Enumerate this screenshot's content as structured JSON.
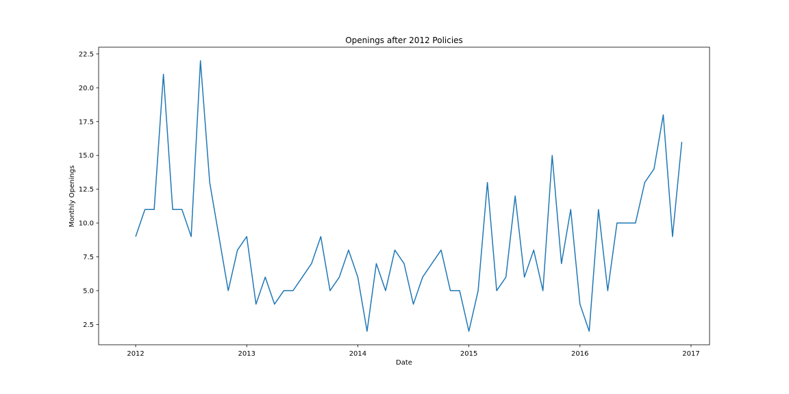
{
  "chart_data": {
    "type": "line",
    "title": "Openings after 2012 Policies",
    "xlabel": "Date",
    "ylabel": "Monthly Openings",
    "x_ticks": [
      "2012",
      "2013",
      "2014",
      "2015",
      "2016",
      "2017"
    ],
    "y_ticks": [
      "2.5",
      "5.0",
      "7.5",
      "10.0",
      "12.5",
      "15.0",
      "17.5",
      "20.0",
      "22.5"
    ],
    "xlim": [
      "2011-09",
      "2017-03"
    ],
    "ylim": [
      1.0,
      23.0
    ],
    "grid": false,
    "series": [
      {
        "color": "#1f77b4",
        "x": [
          "2012-01",
          "2012-02",
          "2012-03",
          "2012-04",
          "2012-05",
          "2012-06",
          "2012-07",
          "2012-08",
          "2012-09",
          "2012-10",
          "2012-11",
          "2012-12",
          "2013-01",
          "2013-02",
          "2013-03",
          "2013-04",
          "2013-05",
          "2013-06",
          "2013-07",
          "2013-08",
          "2013-09",
          "2013-10",
          "2013-11",
          "2013-12",
          "2014-01",
          "2014-02",
          "2014-03",
          "2014-04",
          "2014-05",
          "2014-06",
          "2014-07",
          "2014-08",
          "2014-09",
          "2014-10",
          "2014-11",
          "2014-12",
          "2015-01",
          "2015-02",
          "2015-03",
          "2015-04",
          "2015-05",
          "2015-06",
          "2015-07",
          "2015-08",
          "2015-09",
          "2015-10",
          "2015-11",
          "2015-12",
          "2016-01",
          "2016-02",
          "2016-03",
          "2016-04",
          "2016-05",
          "2016-06",
          "2016-07",
          "2016-08",
          "2016-09",
          "2016-10",
          "2016-11",
          "2016-12"
        ],
        "values": [
          9,
          11,
          11,
          21,
          11,
          11,
          9,
          22,
          13,
          9,
          5,
          8,
          9,
          4,
          6,
          4,
          5,
          5,
          6,
          7,
          9,
          5,
          6,
          8,
          6,
          2,
          7,
          5,
          8,
          7,
          4,
          6,
          7,
          8,
          5,
          5,
          2,
          5,
          13,
          5,
          6,
          12,
          6,
          8,
          5,
          15,
          7,
          11,
          4,
          2,
          11,
          5,
          10,
          10,
          10,
          13,
          14,
          18,
          9,
          16
        ]
      }
    ]
  }
}
